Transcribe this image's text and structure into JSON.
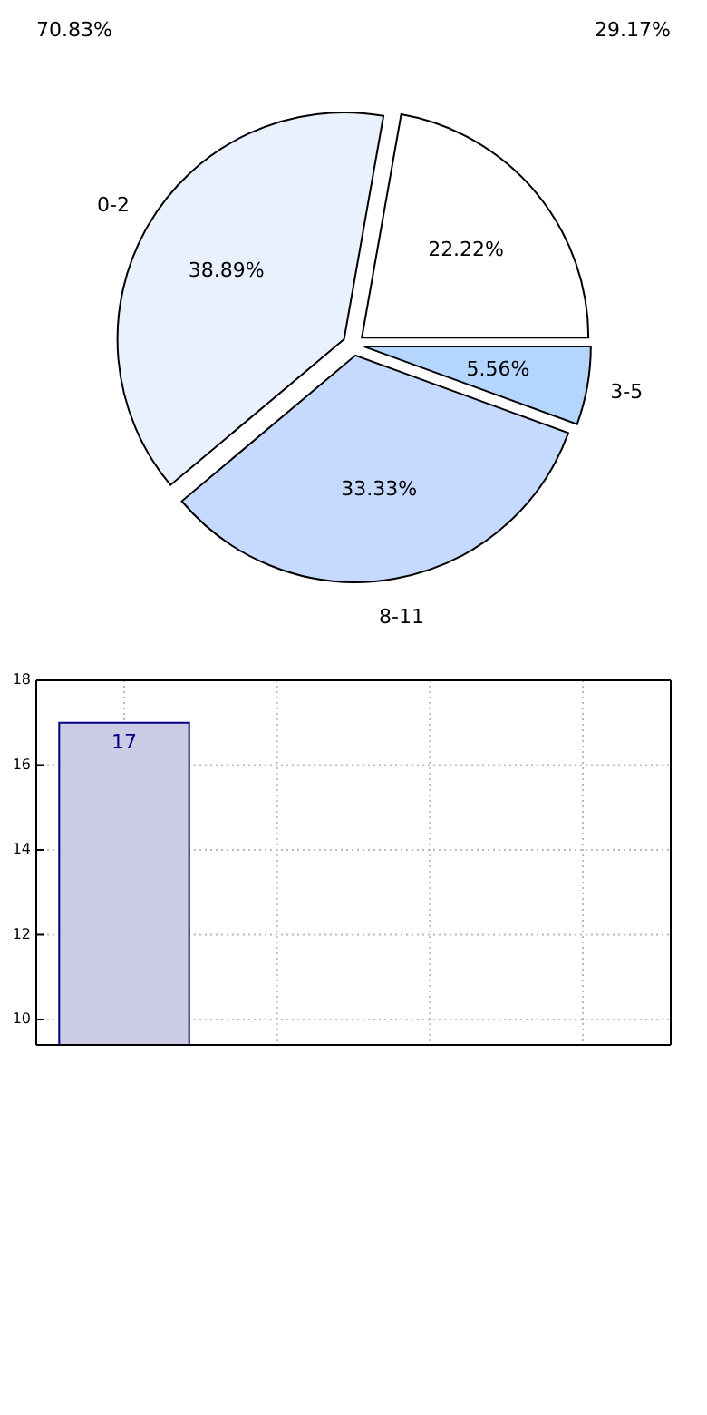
{
  "chart_data": [
    {
      "type": "pie",
      "categories": [
        null,
        "0-2",
        "8-11",
        "3-5"
      ],
      "values": [
        22.22,
        38.89,
        33.33,
        5.56
      ],
      "colors": [
        "#ffffff",
        "#eaf1fe",
        "#c6d9fe",
        "#b3d5fe"
      ],
      "value_labels": [
        "22.22%",
        "38.89%",
        "33.33%",
        "5.56%"
      ],
      "annotations": [
        "70.83%",
        "29.17%"
      ]
    },
    {
      "type": "bar",
      "categories": [
        null,
        null,
        null,
        null
      ],
      "values": [
        17,
        null,
        null,
        null
      ],
      "color": "#cccce6",
      "ylim": [
        9.4,
        18
      ],
      "yticks": [
        10,
        12,
        14,
        16,
        18
      ],
      "grid": true,
      "data_labels": true,
      "tick_labels": "y"
    }
  ]
}
